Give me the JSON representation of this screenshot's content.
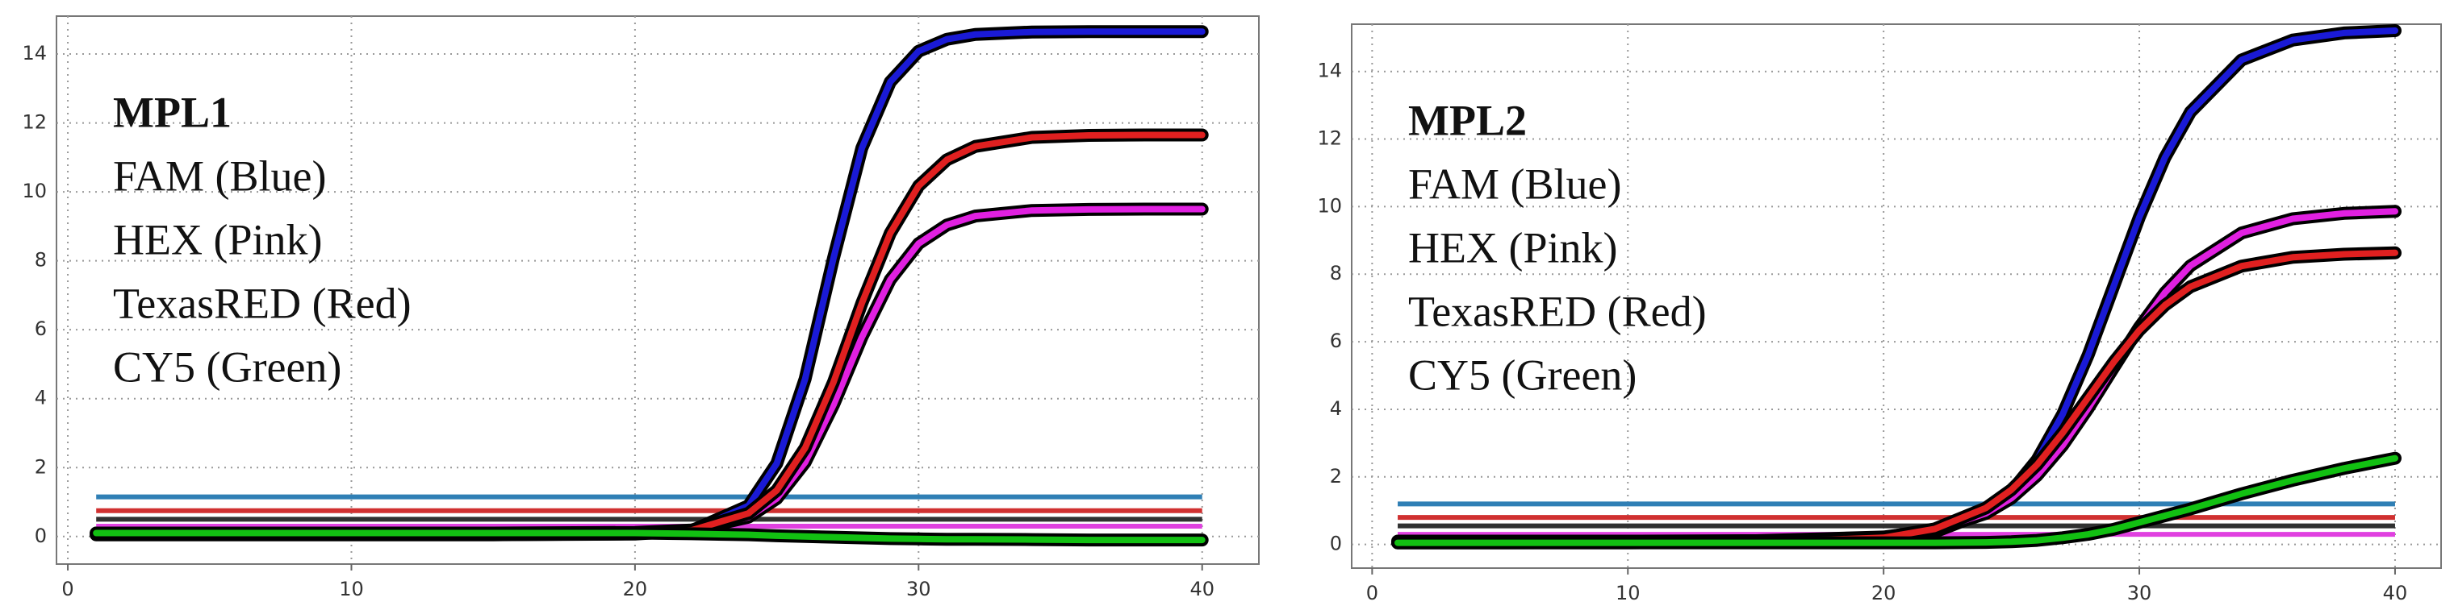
{
  "chart_data": [
    {
      "type": "line",
      "title": "MPL1",
      "x": [
        1,
        5,
        10,
        15,
        20,
        22,
        24,
        25,
        26,
        27,
        28,
        29,
        30,
        31,
        32,
        34,
        36,
        38,
        40
      ],
      "series": [
        {
          "name": "FAM (Blue)",
          "color": "#1a1ad6",
          "values": [
            0.05,
            0.05,
            0.05,
            0.05,
            0.07,
            0.17,
            0.89,
            2.12,
            4.57,
            8.08,
            11.27,
            13.19,
            14.08,
            14.43,
            14.57,
            14.64,
            14.65,
            14.65,
            14.65
          ]
        },
        {
          "name": "HEX (Pink)",
          "color": "#e020e0",
          "values": [
            0.1,
            0.1,
            0.1,
            0.1,
            0.12,
            0.19,
            0.56,
            1.1,
            2.15,
            3.82,
            5.78,
            7.45,
            8.5,
            9.04,
            9.3,
            9.46,
            9.49,
            9.5,
            9.5
          ]
        },
        {
          "name": "TexasRED (Red)",
          "color": "#e02020",
          "values": [
            0.05,
            0.05,
            0.05,
            0.05,
            0.08,
            0.18,
            0.67,
            1.34,
            2.57,
            4.48,
            6.77,
            8.8,
            10.17,
            10.93,
            11.32,
            11.58,
            11.64,
            11.65,
            11.65
          ]
        },
        {
          "name": "CY5 (Green)",
          "color": "#12c012",
          "values": [
            0.1,
            0.1,
            0.1,
            0.1,
            0.1,
            0.08,
            0.05,
            0.02,
            0,
            -0.02,
            -0.04,
            -0.06,
            -0.07,
            -0.08,
            -0.08,
            -0.09,
            -0.1,
            -0.1,
            -0.1
          ]
        }
      ],
      "thresholds": [
        {
          "value": 1.15,
          "color": "#2f7fb5"
        },
        {
          "value": 0.75,
          "color": "#d03030"
        },
        {
          "value": 0.5,
          "color": "#303030"
        },
        {
          "value": 0.3,
          "color": "#e040e0"
        }
      ],
      "xlim": [
        -0.4,
        42
      ],
      "ylim": [
        -0.8,
        15.1
      ],
      "xticks": [
        0,
        10,
        20,
        30,
        40
      ],
      "yticks": [
        0,
        2,
        4,
        6,
        8,
        10,
        12,
        14
      ],
      "grid": true
    },
    {
      "type": "line",
      "title": "MPL2",
      "x": [
        1,
        5,
        10,
        15,
        20,
        22,
        24,
        25,
        26,
        27,
        28,
        29,
        30,
        31,
        32,
        34,
        36,
        38,
        40
      ],
      "series": [
        {
          "name": "FAM (Blue)",
          "color": "#1a1ad6",
          "values": [
            0.05,
            0.05,
            0.05,
            0.06,
            0.16,
            0.37,
            0.96,
            1.57,
            2.5,
            3.85,
            5.61,
            7.65,
            9.69,
            11.45,
            12.8,
            14.34,
            14.93,
            15.14,
            15.21
          ]
        },
        {
          "name": "HEX (Pink)",
          "color": "#e020e0",
          "values": [
            0.1,
            0.1,
            0.1,
            0.11,
            0.22,
            0.42,
            0.92,
            1.37,
            2.04,
            2.93,
            4.03,
            5.24,
            6.43,
            7.45,
            8.25,
            9.22,
            9.64,
            9.8,
            9.86
          ]
        },
        {
          "name": "TexasRED (Red)",
          "color": "#e02020",
          "values": [
            0.05,
            0.05,
            0.06,
            0.07,
            0.2,
            0.46,
            1.08,
            1.62,
            2.36,
            3.3,
            4.35,
            5.4,
            6.34,
            7.08,
            7.63,
            8.24,
            8.5,
            8.59,
            8.63
          ]
        },
        {
          "name": "CY5 (Green)",
          "color": "#12c012",
          "values": [
            0.05,
            0.05,
            0.05,
            0.05,
            0.05,
            0.05,
            0.06,
            0.08,
            0.12,
            0.2,
            0.3,
            0.45,
            0.65,
            0.85,
            1.05,
            1.5,
            1.9,
            2.25,
            2.55
          ]
        }
      ],
      "thresholds": [
        {
          "value": 1.2,
          "color": "#2f7fb5"
        },
        {
          "value": 0.8,
          "color": "#d03030"
        },
        {
          "value": 0.55,
          "color": "#303030"
        },
        {
          "value": 0.3,
          "color": "#e040e0"
        }
      ],
      "xlim": [
        -0.8,
        41.8
      ],
      "ylim": [
        -0.7,
        15.4
      ],
      "xticks": [
        0,
        10,
        20,
        30,
        40
      ],
      "yticks": [
        0,
        2,
        4,
        6,
        8,
        10,
        12,
        14
      ],
      "grid": true
    }
  ]
}
